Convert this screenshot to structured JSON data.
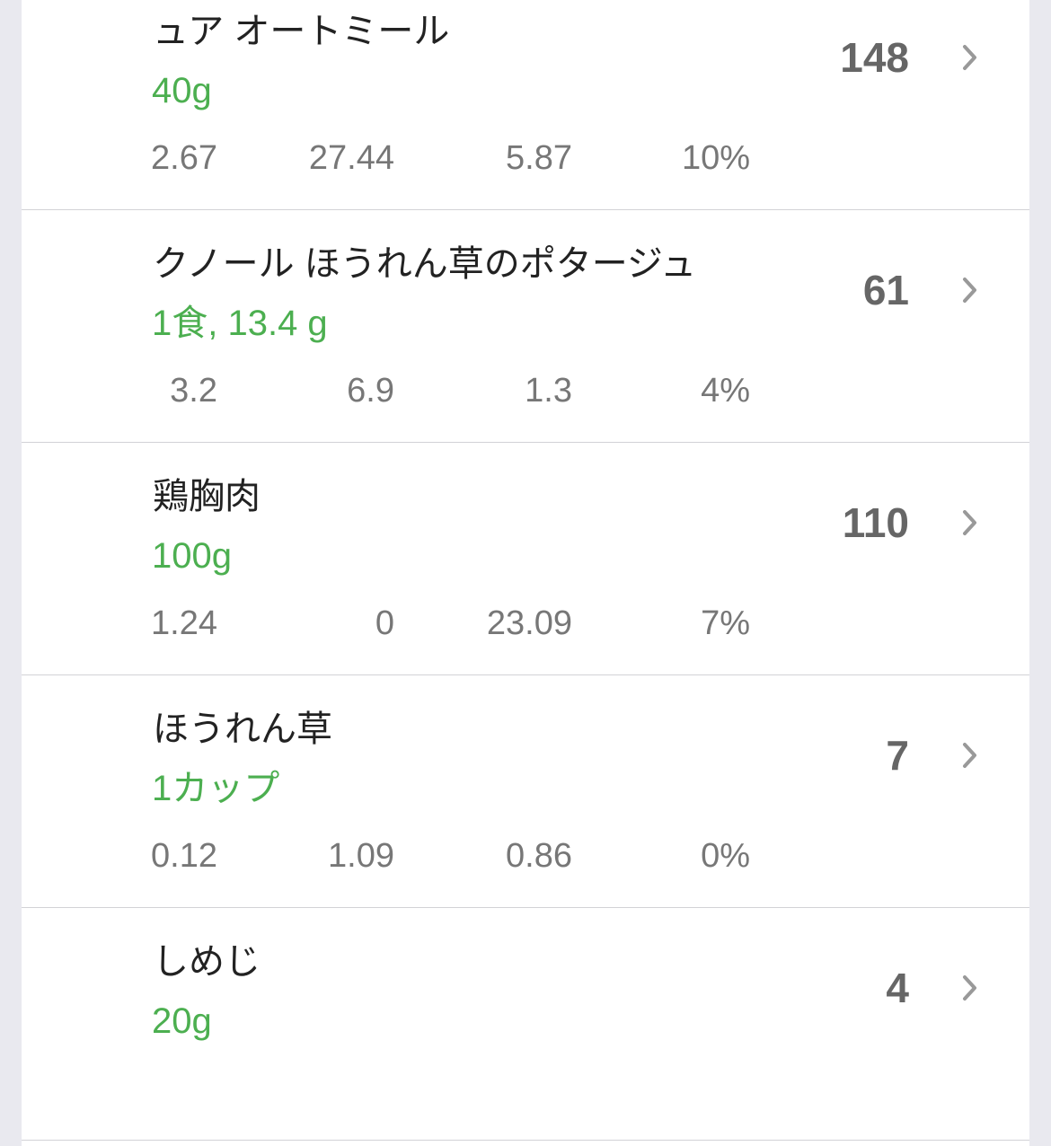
{
  "colors": {
    "serving": "#4caf50",
    "calories": "#666666",
    "macros": "#777777",
    "background": "#e9e9ef"
  },
  "foods": [
    {
      "name": "ュア オートミール",
      "serving": "40g",
      "macros": [
        "2.67",
        "27.44",
        "5.87",
        "10%"
      ],
      "calories": "148"
    },
    {
      "name": "クノール ほうれん草のポタージュ",
      "serving": "1食, 13.4 g",
      "macros": [
        "3.2",
        "6.9",
        "1.3",
        "4%"
      ],
      "calories": "61"
    },
    {
      "name": "鶏胸肉",
      "serving": "100g",
      "macros": [
        "1.24",
        "0",
        "23.09",
        "7%"
      ],
      "calories": "110"
    },
    {
      "name": "ほうれん草",
      "serving": "1カップ",
      "macros": [
        "0.12",
        "1.09",
        "0.86",
        "0%"
      ],
      "calories": "7"
    },
    {
      "name": "しめじ",
      "serving": "20g",
      "macros": [],
      "calories": "4"
    }
  ],
  "icons": {
    "row_chevron": "chevron-right-icon"
  }
}
